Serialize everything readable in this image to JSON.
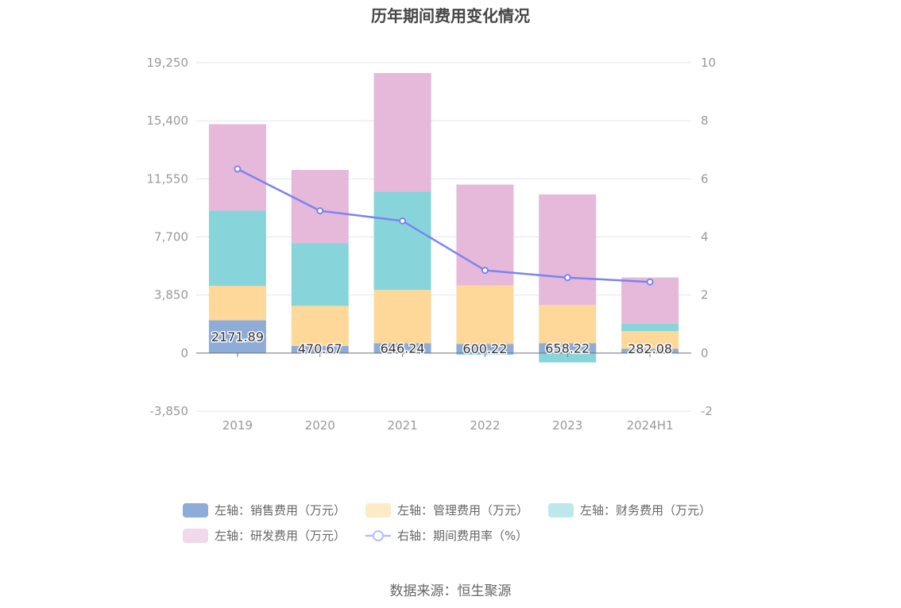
{
  "chart_data": {
    "type": "bar",
    "title": "历年期间费用变化情况",
    "categories": [
      "2019",
      "2020",
      "2021",
      "2022",
      "2023",
      "2024H1"
    ],
    "series": [
      {
        "name": "左轴：销售费用（万元）",
        "axis": "left",
        "stack": "fee",
        "color": "#8eacd8",
        "values": [
          2171.89,
          470.67,
          646.24,
          600.22,
          658.22,
          282.08
        ]
      },
      {
        "name": "左轴：管理费用（万元）",
        "axis": "left",
        "stack": "fee",
        "color": "#fdd899",
        "values": [
          2280,
          2660,
          3540,
          3880,
          2540,
          1170
        ]
      },
      {
        "name": "左轴：财务费用（万元）",
        "axis": "left",
        "stack": "fee",
        "color": "#87d5da",
        "values": [
          4990,
          4170,
          6510,
          -110,
          -620,
          500
        ]
      },
      {
        "name": "左轴：研发费用（万元）",
        "axis": "left",
        "stack": "fee",
        "color": "#e6b8d9",
        "values": [
          5730,
          4840,
          7870,
          6690,
          7320,
          3060
        ]
      },
      {
        "name": "右轴：期间费用率（%）",
        "axis": "right",
        "type": "line",
        "color": "#7b84f0",
        "values": [
          6.34,
          4.9,
          4.55,
          2.85,
          2.6,
          2.45
        ]
      }
    ],
    "bar_labels": [
      "2171.89",
      "470.67",
      "646.24",
      "600.22",
      "658.22",
      "282.08"
    ],
    "y_left": {
      "min": -3850,
      "max": 19250,
      "ticks": [
        "19,250",
        "15,400",
        "11,550",
        "7,700",
        "3,850",
        "0",
        "-3,850"
      ],
      "tick_values": [
        19250,
        15400,
        11550,
        7700,
        3850,
        0,
        -3850
      ]
    },
    "y_right": {
      "min": -2,
      "max": 10,
      "ticks": [
        "10",
        "8",
        "6",
        "4",
        "2",
        "0",
        "-2"
      ],
      "tick_values": [
        10,
        8,
        6,
        4,
        2,
        0,
        -2
      ]
    },
    "grid": true,
    "legend_position": "bottom"
  },
  "source_note": "数据来源：恒生聚源"
}
